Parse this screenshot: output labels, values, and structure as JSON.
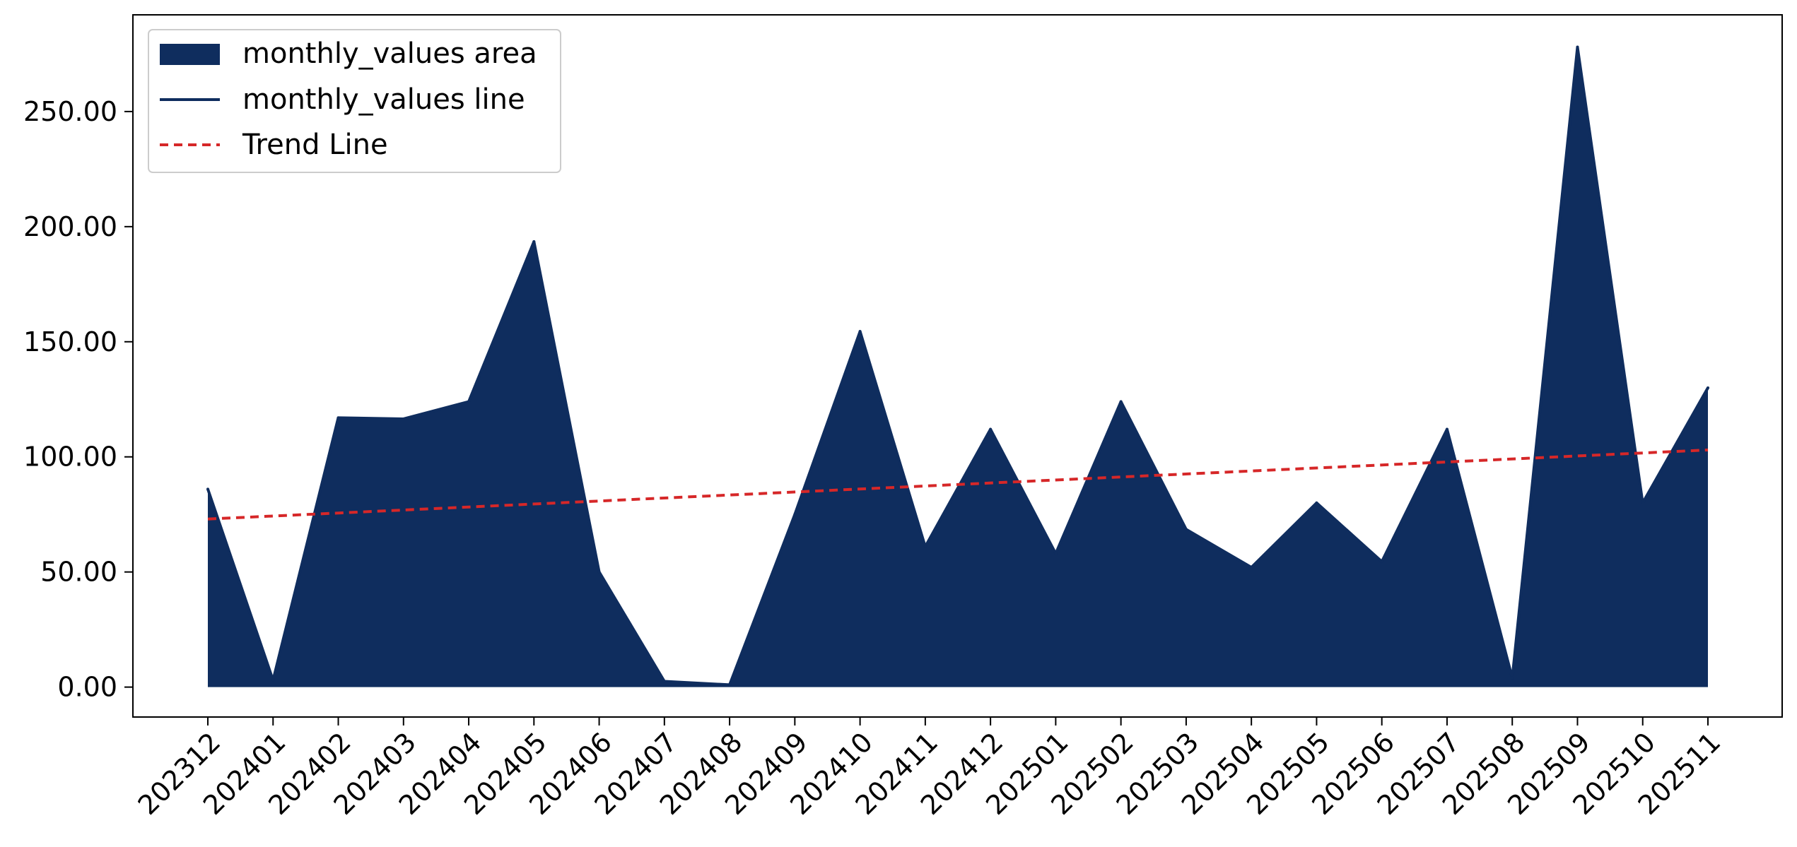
{
  "chart_data": {
    "type": "area",
    "title": "",
    "xlabel": "",
    "ylabel": "",
    "categories": [
      "202312",
      "202401",
      "202402",
      "202403",
      "202404",
      "202405",
      "202406",
      "202407",
      "202408",
      "202409",
      "202410",
      "202411",
      "202412",
      "202501",
      "202502",
      "202503",
      "202504",
      "202505",
      "202506",
      "202507",
      "202508",
      "202509",
      "202510",
      "202511"
    ],
    "series": [
      {
        "name": "monthly_values area",
        "values": [
          86,
          3,
          117,
          116.5,
          124,
          193.5,
          50,
          2.5,
          1,
          75,
          154.5,
          61,
          112,
          58,
          124,
          68.5,
          52,
          80,
          54.5,
          112,
          4,
          278,
          80,
          130
        ],
        "color": "#0f2d5e"
      }
    ],
    "trend": {
      "name": "Trend Line",
      "start": 73,
      "end": 103,
      "color": "#d62728",
      "style": "dashed"
    },
    "legend": {
      "placement": "top-left",
      "entries": [
        "monthly_values area",
        "monthly_values line",
        "Trend Line"
      ]
    },
    "ylim": [
      -13,
      292
    ],
    "yticks": [
      0,
      50,
      100,
      150,
      200,
      250
    ],
    "ytick_labels": [
      "0.00",
      "50.00",
      "100.00",
      "150.00",
      "200.00",
      "250.00"
    ],
    "grid": false
  }
}
